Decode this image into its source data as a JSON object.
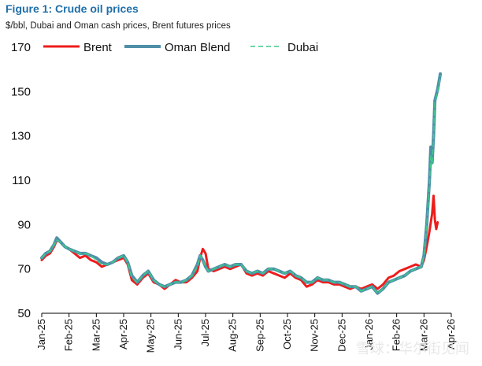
{
  "header": {
    "title": "Figure 1: Crude oil prices",
    "subtitle": "$/bbl, Dubai and Oman cash prices, Brent futures prices"
  },
  "watermark": "雪球：华尔街见闻",
  "colors": {
    "brent": "#ee1c1c",
    "oman": "#4f8fa8",
    "dubai": "#3ec98a",
    "title": "#1f6fa8"
  },
  "chart_data": {
    "type": "line",
    "title": "Figure 1: Crude oil prices",
    "subtitle": "$/bbl, Dubai and Oman cash prices, Brent futures prices",
    "ylim": [
      50,
      170
    ],
    "yticks": [
      50,
      70,
      90,
      110,
      130,
      150,
      170
    ],
    "xlim": [
      0,
      15
    ],
    "xtick_positions": [
      0,
      1,
      2,
      3,
      4,
      5,
      6,
      7,
      8,
      9,
      10,
      11,
      12,
      13,
      14,
      15
    ],
    "xtick_labels": [
      "Jan-25",
      "Feb-25",
      "Mar-25",
      "Apr-25",
      "May-25",
      "Jun-25",
      "Jul-25",
      "Aug-25",
      "Sep-25",
      "Oct-25",
      "Nov-25",
      "Dec-25",
      "Jan-26",
      "Feb-26",
      "Mar-26",
      "Apr-26"
    ],
    "legend_position": "top",
    "series": [
      {
        "name": "Brent",
        "style": "solid",
        "points": [
          [
            0,
            74
          ],
          [
            0.15,
            76
          ],
          [
            0.3,
            77
          ],
          [
            0.45,
            80
          ],
          [
            0.55,
            83
          ],
          [
            0.7,
            82
          ],
          [
            0.85,
            80
          ],
          [
            1.0,
            79
          ],
          [
            1.2,
            77
          ],
          [
            1.4,
            75
          ],
          [
            1.6,
            76
          ],
          [
            1.8,
            74
          ],
          [
            2.0,
            73
          ],
          [
            2.2,
            71
          ],
          [
            2.4,
            72
          ],
          [
            2.6,
            73
          ],
          [
            2.8,
            74
          ],
          [
            3.0,
            75
          ],
          [
            3.15,
            72
          ],
          [
            3.3,
            65
          ],
          [
            3.5,
            63
          ],
          [
            3.7,
            66
          ],
          [
            3.9,
            68
          ],
          [
            4.1,
            64
          ],
          [
            4.3,
            63
          ],
          [
            4.5,
            61
          ],
          [
            4.7,
            63
          ],
          [
            4.9,
            65
          ],
          [
            5.1,
            64
          ],
          [
            5.3,
            64
          ],
          [
            5.5,
            66
          ],
          [
            5.7,
            69
          ],
          [
            5.8,
            75
          ],
          [
            5.9,
            79
          ],
          [
            6.0,
            77
          ],
          [
            6.1,
            70
          ],
          [
            6.3,
            69
          ],
          [
            6.5,
            70
          ],
          [
            6.7,
            71
          ],
          [
            6.9,
            70
          ],
          [
            7.1,
            71
          ],
          [
            7.3,
            72
          ],
          [
            7.5,
            68
          ],
          [
            7.7,
            67
          ],
          [
            7.9,
            68
          ],
          [
            8.1,
            67
          ],
          [
            8.3,
            69
          ],
          [
            8.5,
            68
          ],
          [
            8.7,
            67
          ],
          [
            8.9,
            66
          ],
          [
            9.1,
            68
          ],
          [
            9.3,
            66
          ],
          [
            9.5,
            65
          ],
          [
            9.7,
            62
          ],
          [
            9.9,
            63
          ],
          [
            10.1,
            65
          ],
          [
            10.3,
            64
          ],
          [
            10.5,
            64
          ],
          [
            10.7,
            63
          ],
          [
            10.9,
            63
          ],
          [
            11.1,
            62
          ],
          [
            11.3,
            61
          ],
          [
            11.5,
            62
          ],
          [
            11.7,
            61
          ],
          [
            11.9,
            62
          ],
          [
            12.1,
            63
          ],
          [
            12.3,
            61
          ],
          [
            12.5,
            63
          ],
          [
            12.7,
            66
          ],
          [
            12.9,
            67
          ],
          [
            13.1,
            69
          ],
          [
            13.3,
            70
          ],
          [
            13.5,
            71
          ],
          [
            13.7,
            72
          ],
          [
            13.9,
            71
          ],
          [
            14.0,
            74
          ],
          [
            14.1,
            80
          ],
          [
            14.2,
            87
          ],
          [
            14.3,
            95
          ],
          [
            14.35,
            103
          ],
          [
            14.4,
            92
          ],
          [
            14.45,
            88
          ],
          [
            14.5,
            91
          ]
        ]
      },
      {
        "name": "Oman Blend",
        "style": "solid",
        "points": [
          [
            0,
            75
          ],
          [
            0.15,
            77
          ],
          [
            0.3,
            78
          ],
          [
            0.45,
            81
          ],
          [
            0.55,
            84
          ],
          [
            0.7,
            82
          ],
          [
            0.85,
            80
          ],
          [
            1.0,
            79
          ],
          [
            1.2,
            78
          ],
          [
            1.4,
            77
          ],
          [
            1.6,
            77
          ],
          [
            1.8,
            76
          ],
          [
            2.0,
            75
          ],
          [
            2.2,
            73
          ],
          [
            2.4,
            72
          ],
          [
            2.6,
            73
          ],
          [
            2.8,
            75
          ],
          [
            3.0,
            76
          ],
          [
            3.15,
            73
          ],
          [
            3.3,
            67
          ],
          [
            3.5,
            64
          ],
          [
            3.7,
            67
          ],
          [
            3.9,
            69
          ],
          [
            4.1,
            65
          ],
          [
            4.3,
            63
          ],
          [
            4.5,
            62
          ],
          [
            4.7,
            63
          ],
          [
            4.9,
            64
          ],
          [
            5.1,
            64
          ],
          [
            5.3,
            65
          ],
          [
            5.5,
            67
          ],
          [
            5.7,
            72
          ],
          [
            5.8,
            76
          ],
          [
            5.9,
            74
          ],
          [
            6.0,
            71
          ],
          [
            6.1,
            69
          ],
          [
            6.3,
            70
          ],
          [
            6.5,
            71
          ],
          [
            6.7,
            72
          ],
          [
            6.9,
            71
          ],
          [
            7.1,
            72
          ],
          [
            7.3,
            72
          ],
          [
            7.5,
            69
          ],
          [
            7.7,
            68
          ],
          [
            7.9,
            69
          ],
          [
            8.1,
            68
          ],
          [
            8.3,
            70
          ],
          [
            8.5,
            70
          ],
          [
            8.7,
            69
          ],
          [
            8.9,
            68
          ],
          [
            9.1,
            69
          ],
          [
            9.3,
            67
          ],
          [
            9.5,
            66
          ],
          [
            9.7,
            64
          ],
          [
            9.9,
            64
          ],
          [
            10.1,
            66
          ],
          [
            10.3,
            65
          ],
          [
            10.5,
            65
          ],
          [
            10.7,
            64
          ],
          [
            10.9,
            64
          ],
          [
            11.1,
            63
          ],
          [
            11.3,
            62
          ],
          [
            11.5,
            62
          ],
          [
            11.7,
            60
          ],
          [
            11.9,
            61
          ],
          [
            12.1,
            62
          ],
          [
            12.3,
            59
          ],
          [
            12.5,
            61
          ],
          [
            12.7,
            64
          ],
          [
            12.9,
            65
          ],
          [
            13.1,
            66
          ],
          [
            13.3,
            67
          ],
          [
            13.5,
            69
          ],
          [
            13.7,
            70
          ],
          [
            13.9,
            71
          ],
          [
            14.0,
            76
          ],
          [
            14.1,
            90
          ],
          [
            14.2,
            110
          ],
          [
            14.25,
            125
          ],
          [
            14.3,
            118
          ],
          [
            14.35,
            130
          ],
          [
            14.4,
            146
          ],
          [
            14.5,
            151
          ],
          [
            14.6,
            158
          ]
        ]
      },
      {
        "name": "Dubai",
        "style": "dashed",
        "points": [
          [
            0,
            75
          ],
          [
            0.15,
            77
          ],
          [
            0.3,
            78
          ],
          [
            0.45,
            81
          ],
          [
            0.55,
            83
          ],
          [
            0.7,
            82
          ],
          [
            0.85,
            80
          ],
          [
            1.0,
            79
          ],
          [
            1.2,
            78
          ],
          [
            1.4,
            77
          ],
          [
            1.6,
            77
          ],
          [
            1.8,
            76
          ],
          [
            2.0,
            74
          ],
          [
            2.2,
            72
          ],
          [
            2.4,
            72
          ],
          [
            2.6,
            73
          ],
          [
            2.8,
            75
          ],
          [
            3.0,
            76
          ],
          [
            3.15,
            73
          ],
          [
            3.3,
            66
          ],
          [
            3.5,
            64
          ],
          [
            3.7,
            67
          ],
          [
            3.9,
            69
          ],
          [
            4.1,
            65
          ],
          [
            4.3,
            63
          ],
          [
            4.5,
            62
          ],
          [
            4.7,
            63
          ],
          [
            4.9,
            64
          ],
          [
            5.1,
            64
          ],
          [
            5.3,
            65
          ],
          [
            5.5,
            67
          ],
          [
            5.7,
            71
          ],
          [
            5.8,
            76
          ],
          [
            5.9,
            74
          ],
          [
            6.0,
            71
          ],
          [
            6.1,
            69
          ],
          [
            6.3,
            70
          ],
          [
            6.5,
            71
          ],
          [
            6.7,
            72
          ],
          [
            6.9,
            71
          ],
          [
            7.1,
            72
          ],
          [
            7.3,
            72
          ],
          [
            7.5,
            69
          ],
          [
            7.7,
            68
          ],
          [
            7.9,
            69
          ],
          [
            8.1,
            68
          ],
          [
            8.3,
            70
          ],
          [
            8.5,
            70
          ],
          [
            8.7,
            69
          ],
          [
            8.9,
            68
          ],
          [
            9.1,
            69
          ],
          [
            9.3,
            67
          ],
          [
            9.5,
            66
          ],
          [
            9.7,
            64
          ],
          [
            9.9,
            64
          ],
          [
            10.1,
            66
          ],
          [
            10.3,
            65
          ],
          [
            10.5,
            65
          ],
          [
            10.7,
            64
          ],
          [
            10.9,
            64
          ],
          [
            11.1,
            63
          ],
          [
            11.3,
            62
          ],
          [
            11.5,
            62
          ],
          [
            11.7,
            60
          ],
          [
            11.9,
            61
          ],
          [
            12.1,
            62
          ],
          [
            12.3,
            59
          ],
          [
            12.5,
            61
          ],
          [
            12.7,
            64
          ],
          [
            12.9,
            65
          ],
          [
            13.1,
            66
          ],
          [
            13.3,
            67
          ],
          [
            13.5,
            69
          ],
          [
            13.7,
            70
          ],
          [
            13.9,
            71
          ],
          [
            14.0,
            76
          ],
          [
            14.1,
            89
          ],
          [
            14.2,
            108
          ],
          [
            14.25,
            121
          ],
          [
            14.3,
            117
          ],
          [
            14.35,
            129
          ],
          [
            14.4,
            145
          ],
          [
            14.5,
            150
          ],
          [
            14.6,
            157
          ]
        ]
      }
    ]
  }
}
